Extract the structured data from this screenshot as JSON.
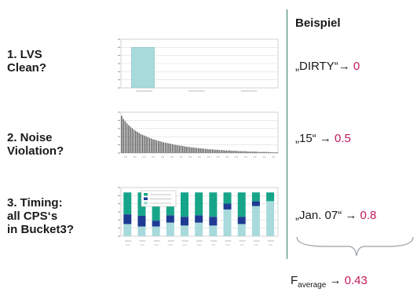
{
  "rows": [
    {
      "label": "1. LVS\n  Clean?",
      "example": "„DIRTY“",
      "arrow": "→",
      "value": "0"
    },
    {
      "label": "2. Noise\n  Violation?",
      "example": "„15“",
      "arrow": "→",
      "value": "0.5"
    },
    {
      "label": "3. Timing:\n  all CPS‘s\n  in Bucket3?",
      "example": "„Jan. 07“",
      "arrow": "→",
      "value": "0.8"
    }
  ],
  "header": "Beispiel",
  "summary": {
    "f": "F",
    "sub": "average",
    "arrow": "→",
    "value": "0.43"
  },
  "colors": {
    "value": "#c2185b",
    "divider": "#2e7d5b",
    "bar_teal": "#a8dadc",
    "bar_navy": "#1f3a93",
    "bar_green": "#17a589"
  },
  "chart_data": [
    {
      "type": "bar",
      "categories": [
        "Status1",
        "Status2",
        "Status3"
      ],
      "values": [
        1,
        0,
        0
      ],
      "ylim": [
        0,
        1.2
      ]
    },
    {
      "type": "bar",
      "categories": [
        "1",
        "2",
        "3",
        "4",
        "5",
        "6",
        "7",
        "8",
        "9",
        "10",
        "11",
        "12",
        "13",
        "14",
        "15",
        "16",
        "17",
        "18",
        "19",
        "20",
        "21",
        "22",
        "23",
        "24",
        "25",
        "26",
        "27",
        "28",
        "29",
        "30",
        "31",
        "32",
        "33",
        "34",
        "35",
        "36",
        "37",
        "38",
        "39",
        "40",
        "41",
        "42",
        "43",
        "44",
        "45",
        "46",
        "47",
        "48",
        "49",
        "50",
        "51",
        "52",
        "53",
        "54",
        "55",
        "56",
        "57",
        "58",
        "59",
        "60",
        "61",
        "62",
        "63",
        "64",
        "65",
        "66",
        "67",
        "68",
        "69",
        "70",
        "71",
        "72",
        "73",
        "74",
        "75",
        "76",
        "77",
        "78",
        "79",
        "80",
        "81",
        "82",
        "83",
        "84",
        "85",
        "86",
        "87",
        "88",
        "89",
        "90"
      ],
      "values": [
        1.0,
        0.92,
        0.86,
        0.8,
        0.75,
        0.71,
        0.67,
        0.63,
        0.6,
        0.57,
        0.54,
        0.51,
        0.49,
        0.47,
        0.45,
        0.43,
        0.41,
        0.39,
        0.37,
        0.36,
        0.34,
        0.33,
        0.32,
        0.3,
        0.29,
        0.28,
        0.27,
        0.26,
        0.25,
        0.24,
        0.23,
        0.22,
        0.21,
        0.2,
        0.2,
        0.19,
        0.18,
        0.17,
        0.17,
        0.16,
        0.15,
        0.15,
        0.14,
        0.14,
        0.13,
        0.13,
        0.12,
        0.12,
        0.11,
        0.11,
        0.1,
        0.1,
        0.1,
        0.09,
        0.09,
        0.09,
        0.08,
        0.08,
        0.08,
        0.07,
        0.07,
        0.07,
        0.07,
        0.06,
        0.06,
        0.06,
        0.06,
        0.05,
        0.05,
        0.05,
        0.05,
        0.05,
        0.04,
        0.04,
        0.04,
        0.04,
        0.04,
        0.04,
        0.03,
        0.03,
        0.03,
        0.03,
        0.03,
        0.03,
        0.03,
        0.02,
        0.02,
        0.02,
        0.02,
        0.02
      ],
      "ylim": [
        0,
        1.1
      ]
    },
    {
      "type": "bar",
      "stacked": true,
      "categories": [
        "Jan 06",
        "Mar 06",
        "Jun 06",
        "Jul 06",
        "Aug 06",
        "Sep 06",
        "Oct 06",
        "Nov 06",
        "Dec 06",
        "Jan 07",
        "Feb 07"
      ],
      "series": [
        {
          "values": [
            0.25,
            0.2,
            0.2,
            0.28,
            0.22,
            0.28,
            0.22,
            0.55,
            0.25,
            0.62,
            0.72
          ]
        },
        {
          "values": [
            0.2,
            0.22,
            0.12,
            0.15,
            0.18,
            0.15,
            0.18,
            0.12,
            0.15,
            0.1,
            0.0
          ]
        },
        {
          "values": [
            0.45,
            0.48,
            0.58,
            0.45,
            0.5,
            0.47,
            0.5,
            0.23,
            0.5,
            0.18,
            0.18
          ]
        }
      ],
      "ylim": [
        0,
        1.0
      ]
    }
  ]
}
